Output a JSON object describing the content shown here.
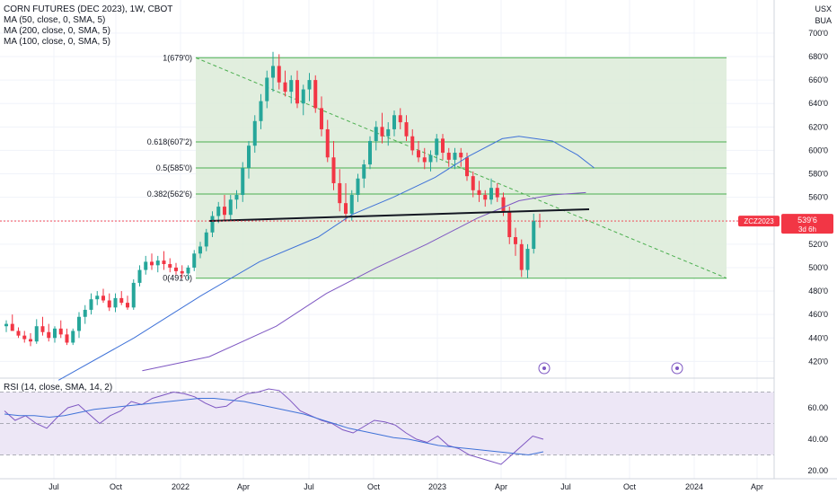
{
  "header": {
    "title": "CORN FUTURES (DEC 2023), 1W, CBOT",
    "ma_lines": [
      "MA (50, close, 0, SMA, 5)",
      "MA (200, close, 0, SMA, 5)",
      "MA (100, close, 0, SMA, 5)"
    ],
    "currency": "USX",
    "unit": "BUA"
  },
  "price_badge": {
    "symbol": "ZCZ2023",
    "price": "539'6",
    "countdown": "3d 6h",
    "color": "#f23645"
  },
  "rsi_label": "RSI (14, close, SMA, 14, 2)",
  "colors": {
    "up": "#26a69a",
    "down": "#f23645",
    "fib_fill": "#dcebd8",
    "fib_line": "#4caf50",
    "ma50": "#3f72d8",
    "ma100": "#7e57c2",
    "rsi": "#7e57c2",
    "rsi_ma": "#3f72d8",
    "rsi_band": "#ede7f6"
  },
  "chart_data": {
    "type": "candlestick",
    "title": "CORN FUTURES (DEC 2023), 1W, CBOT",
    "y_ticks": [
      "700'0",
      "680'0",
      "660'0",
      "640'0",
      "620'0",
      "600'0",
      "580'0",
      "560'0",
      "540'0",
      "520'0",
      "500'0",
      "480'0",
      "460'0",
      "440'0",
      "420'0"
    ],
    "y_range": [
      412,
      705
    ],
    "x_ticks": [
      "Jul",
      "Oct",
      "2022",
      "Apr",
      "Jul",
      "Oct",
      "2023",
      "Apr",
      "Jul",
      "Oct",
      "2024",
      "Apr"
    ],
    "fib_levels": [
      {
        "label": "1(679'0)",
        "value": 679.0
      },
      {
        "label": "0.618(607'2)",
        "value": 607.25
      },
      {
        "label": "0.5(585'0)",
        "value": 585.0
      },
      {
        "label": "0.382(562'6)",
        "value": 562.75
      },
      {
        "label": "0(491'0)",
        "value": 491.0
      }
    ],
    "candles": [
      [
        450,
        455,
        445,
        452
      ],
      [
        452,
        460,
        448,
        446
      ],
      [
        446,
        449,
        440,
        442
      ],
      [
        442,
        446,
        436,
        439
      ],
      [
        439,
        444,
        433,
        437
      ],
      [
        437,
        456,
        435,
        450
      ],
      [
        450,
        458,
        442,
        445
      ],
      [
        445,
        452,
        437,
        440
      ],
      [
        440,
        450,
        436,
        448
      ],
      [
        448,
        455,
        440,
        443
      ],
      [
        443,
        448,
        434,
        436
      ],
      [
        436,
        448,
        434,
        446
      ],
      [
        446,
        462,
        440,
        458
      ],
      [
        458,
        468,
        452,
        464
      ],
      [
        464,
        478,
        460,
        473
      ],
      [
        473,
        480,
        468,
        476
      ],
      [
        476,
        482,
        470,
        472
      ],
      [
        472,
        478,
        463,
        466
      ],
      [
        466,
        478,
        462,
        474
      ],
      [
        474,
        480,
        468,
        470
      ],
      [
        470,
        476,
        464,
        466
      ],
      [
        466,
        490,
        464,
        487
      ],
      [
        487,
        502,
        484,
        498
      ],
      [
        498,
        510,
        494,
        505
      ],
      [
        505,
        512,
        498,
        502
      ],
      [
        502,
        510,
        496,
        506
      ],
      [
        506,
        514,
        498,
        503
      ],
      [
        503,
        508,
        496,
        500
      ],
      [
        500,
        504,
        494,
        497
      ],
      [
        497,
        502,
        491,
        495
      ],
      [
        495,
        502,
        490,
        500
      ],
      [
        500,
        515,
        497,
        512
      ],
      [
        512,
        522,
        508,
        518
      ],
      [
        518,
        533,
        514,
        530
      ],
      [
        530,
        548,
        526,
        544
      ],
      [
        544,
        556,
        538,
        552
      ],
      [
        552,
        562,
        540,
        545
      ],
      [
        545,
        562,
        540,
        558
      ],
      [
        558,
        566,
        550,
        562
      ],
      [
        562,
        590,
        556,
        585
      ],
      [
        585,
        608,
        576,
        604
      ],
      [
        604,
        630,
        598,
        625
      ],
      [
        625,
        648,
        618,
        642
      ],
      [
        642,
        668,
        636,
        662
      ],
      [
        662,
        684,
        650,
        672
      ],
      [
        672,
        682,
        652,
        658
      ],
      [
        658,
        668,
        646,
        650
      ],
      [
        650,
        664,
        640,
        660
      ],
      [
        660,
        668,
        636,
        640
      ],
      [
        640,
        656,
        630,
        652
      ],
      [
        652,
        666,
        642,
        660
      ],
      [
        660,
        664,
        632,
        636
      ],
      [
        636,
        646,
        612,
        618
      ],
      [
        618,
        626,
        590,
        594
      ],
      [
        594,
        608,
        566,
        572
      ],
      [
        572,
        584,
        548,
        555
      ],
      [
        555,
        572,
        540,
        546
      ],
      [
        546,
        566,
        540,
        562
      ],
      [
        562,
        580,
        556,
        576
      ],
      [
        576,
        592,
        568,
        588
      ],
      [
        588,
        612,
        584,
        608
      ],
      [
        608,
        625,
        600,
        620
      ],
      [
        620,
        632,
        606,
        612
      ],
      [
        612,
        624,
        604,
        618
      ],
      [
        618,
        634,
        612,
        630
      ],
      [
        630,
        636,
        618,
        624
      ],
      [
        624,
        630,
        608,
        612
      ],
      [
        612,
        618,
        596,
        600
      ],
      [
        600,
        608,
        590,
        594
      ],
      [
        594,
        602,
        584,
        590
      ],
      [
        590,
        600,
        582,
        596
      ],
      [
        596,
        614,
        590,
        610
      ],
      [
        610,
        614,
        592,
        598
      ],
      [
        598,
        602,
        586,
        592
      ],
      [
        592,
        602,
        584,
        598
      ],
      [
        598,
        602,
        586,
        594
      ],
      [
        594,
        598,
        574,
        578
      ],
      [
        578,
        582,
        560,
        566
      ],
      [
        566,
        574,
        556,
        562
      ],
      [
        562,
        566,
        552,
        558
      ],
      [
        558,
        576,
        554,
        568
      ],
      [
        568,
        572,
        556,
        560
      ],
      [
        560,
        564,
        544,
        548
      ],
      [
        548,
        552,
        520,
        526
      ],
      [
        526,
        534,
        510,
        520
      ],
      [
        520,
        524,
        492,
        498
      ],
      [
        498,
        520,
        491,
        516
      ],
      [
        516,
        546,
        512,
        540
      ],
      [
        540,
        546,
        534,
        539.75
      ]
    ],
    "ma50": [
      [
        0.07,
        404
      ],
      [
        0.16,
        440
      ],
      [
        0.24,
        476
      ],
      [
        0.31,
        505
      ],
      [
        0.38,
        526
      ],
      [
        0.42,
        545
      ],
      [
        0.47,
        560
      ],
      [
        0.52,
        577
      ],
      [
        0.56,
        595
      ],
      [
        0.6,
        610
      ],
      [
        0.62,
        612
      ],
      [
        0.66,
        608
      ],
      [
        0.69,
        596
      ],
      [
        0.71,
        585
      ]
    ],
    "ma100": [
      [
        0.17,
        412
      ],
      [
        0.25,
        424
      ],
      [
        0.33,
        450
      ],
      [
        0.39,
        478
      ],
      [
        0.45,
        500
      ],
      [
        0.51,
        520
      ],
      [
        0.57,
        542
      ],
      [
        0.62,
        557
      ],
      [
        0.66,
        562
      ],
      [
        0.7,
        564
      ]
    ],
    "rsi_ticks": [
      "60.00",
      "40.00",
      "20.00"
    ],
    "rsi_label": "RSI (14, close, SMA, 14, 2)"
  }
}
